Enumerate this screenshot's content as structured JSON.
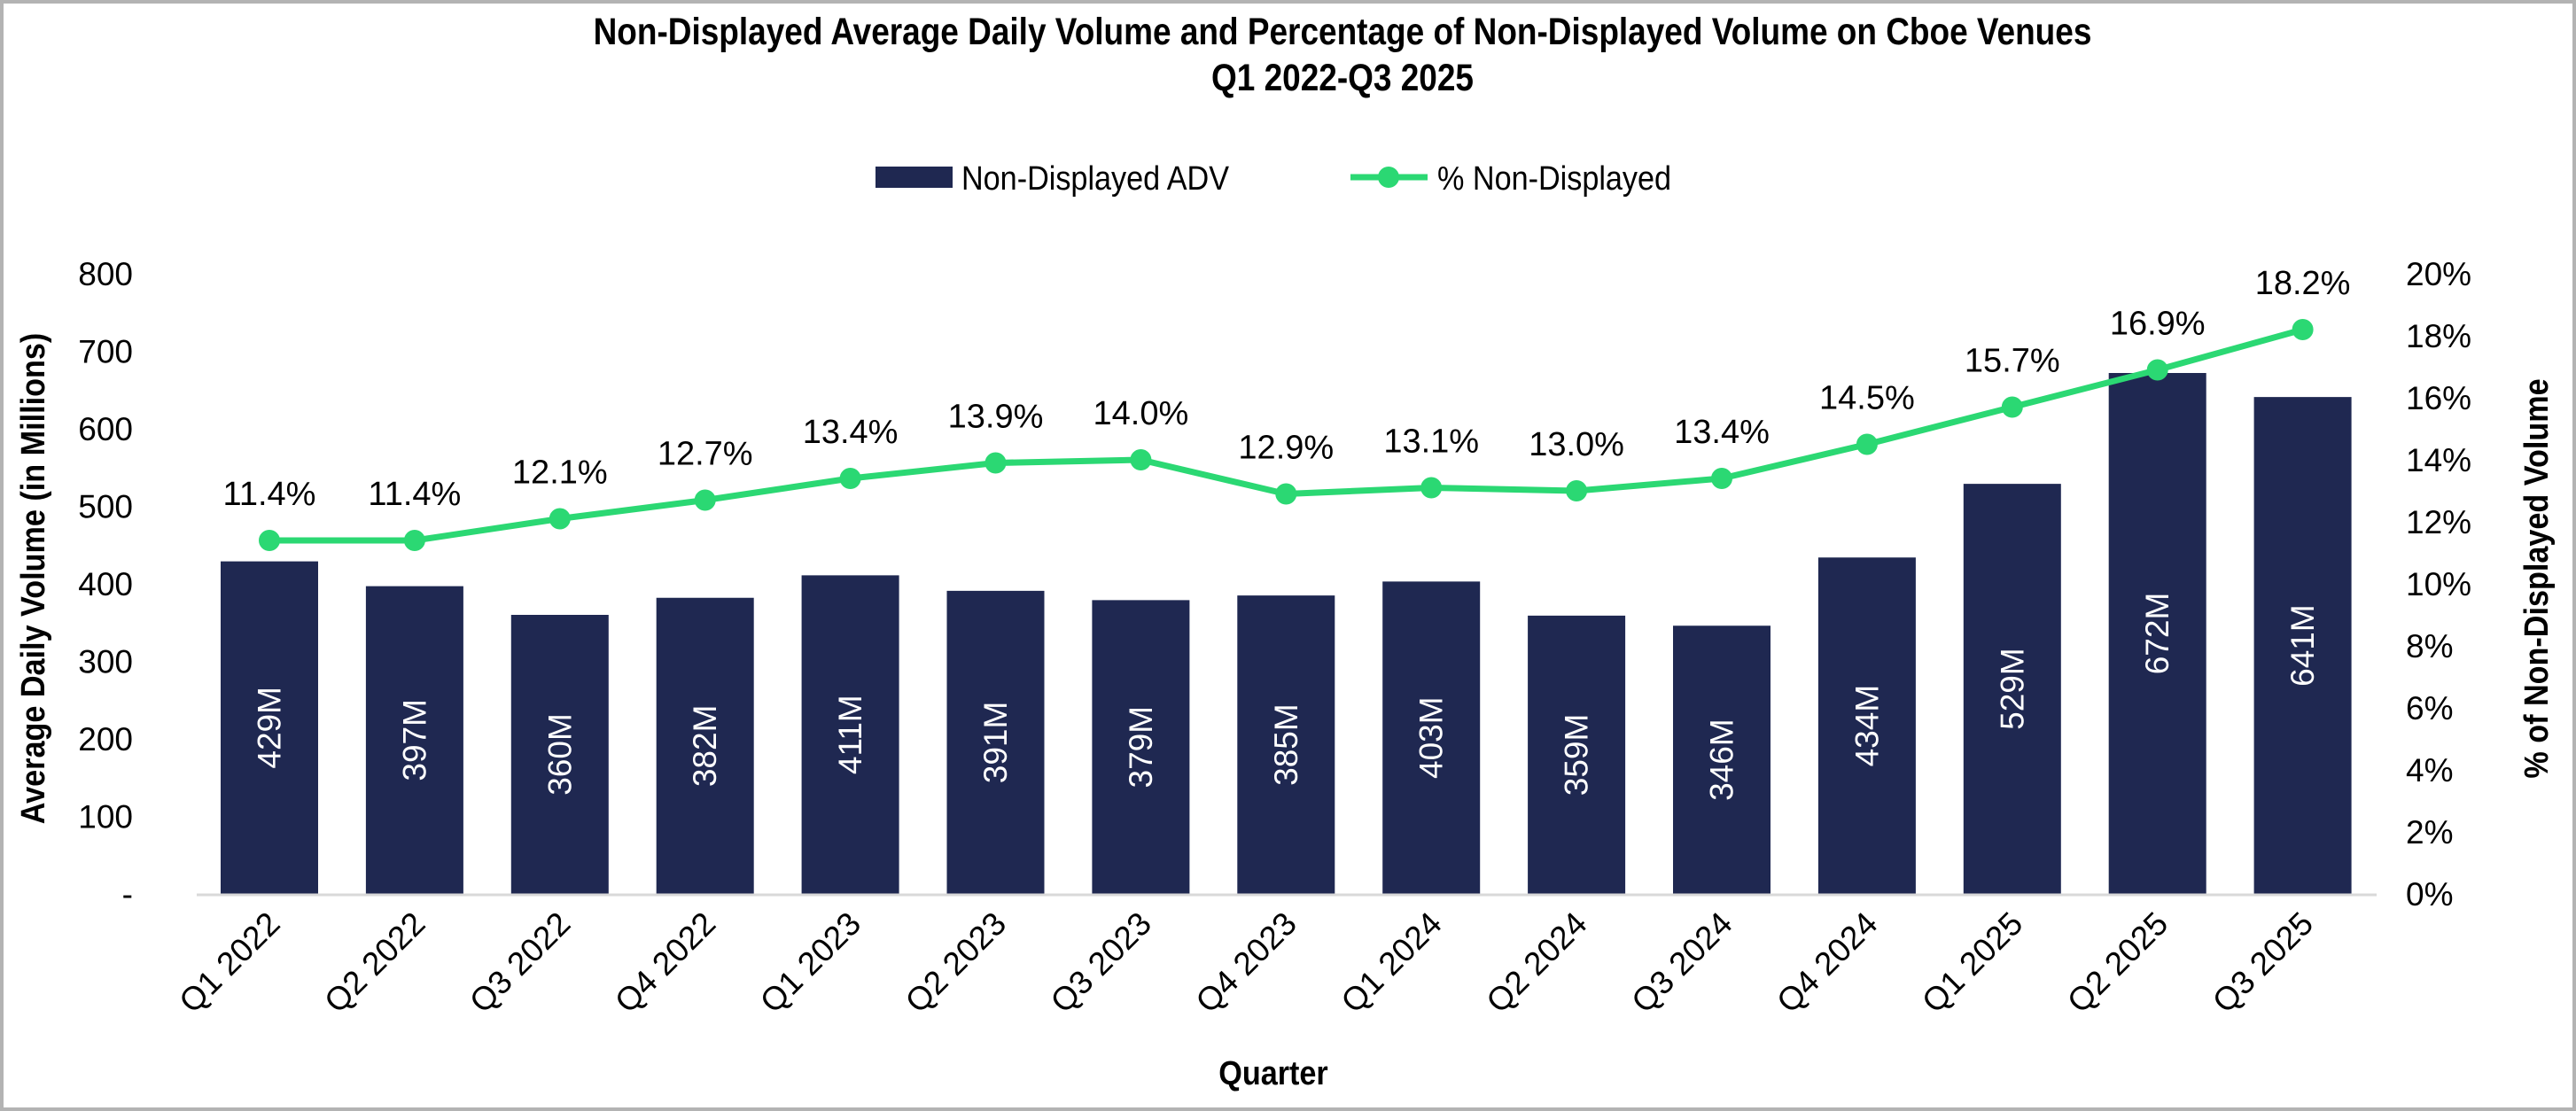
{
  "chart_data": {
    "type": "bar",
    "title": "Non-Displayed Average Daily Volume and Percentage of Non-Displayed Volume on Cboe Venues",
    "subtitle": "Q1 2022-Q3 2025",
    "xlabel": "Quarter",
    "ylabel": "Average Daily Volume (in Millions)",
    "y2label": "% of Non-Displayed Volume",
    "categories": [
      "Q1 2022",
      "Q2 2022",
      "Q3 2022",
      "Q4 2022",
      "Q1 2023",
      "Q2 2023",
      "Q3 2023",
      "Q4 2023",
      "Q1 2024",
      "Q2 2024",
      "Q3 2024",
      "Q4 2024",
      "Q1 2025",
      "Q2 2025",
      "Q3 2025"
    ],
    "series": [
      {
        "name": "Non-Displayed ADV",
        "type": "bar",
        "axis": "left",
        "color": "#1f2851",
        "values": [
          429,
          397,
          360,
          382,
          411,
          391,
          379,
          385,
          403,
          359,
          346,
          434,
          529,
          672,
          641
        ],
        "labels": [
          "429M",
          "397M",
          "360M",
          "382M",
          "411M",
          "391M",
          "379M",
          "385M",
          "403M",
          "359M",
          "346M",
          "434M",
          "529M",
          "672M",
          "641M"
        ]
      },
      {
        "name": "% Non-Displayed",
        "type": "line",
        "axis": "right",
        "color": "#2bd873",
        "values": [
          11.4,
          11.4,
          12.1,
          12.7,
          13.4,
          13.9,
          14.0,
          12.9,
          13.1,
          13.0,
          13.4,
          14.5,
          15.7,
          16.9,
          18.2
        ],
        "labels": [
          "11.4%",
          "11.4%",
          "12.1%",
          "12.7%",
          "13.4%",
          "13.9%",
          "14.0%",
          "12.9%",
          "13.1%",
          "13.0%",
          "13.4%",
          "14.5%",
          "15.7%",
          "16.9%",
          "18.2%"
        ]
      }
    ],
    "ylim": [
      0,
      800
    ],
    "y2lim": [
      0,
      20
    ],
    "yticks": [
      0,
      100,
      200,
      300,
      400,
      500,
      600,
      700,
      800
    ],
    "ytick_labels": [
      "-",
      "100",
      "200",
      "300",
      "400",
      "500",
      "600",
      "700",
      "800"
    ],
    "y2ticks": [
      0,
      2,
      4,
      6,
      8,
      10,
      12,
      14,
      16,
      18,
      20
    ],
    "y2tick_labels": [
      "0%",
      "2%",
      "4%",
      "6%",
      "8%",
      "10%",
      "12%",
      "14%",
      "16%",
      "18%",
      "20%"
    ],
    "legend": {
      "position": "top-center",
      "entries": [
        "Non-Displayed ADV",
        "% Non-Displayed"
      ]
    },
    "grid": false,
    "axis_line_color": "#d9d9d9"
  }
}
